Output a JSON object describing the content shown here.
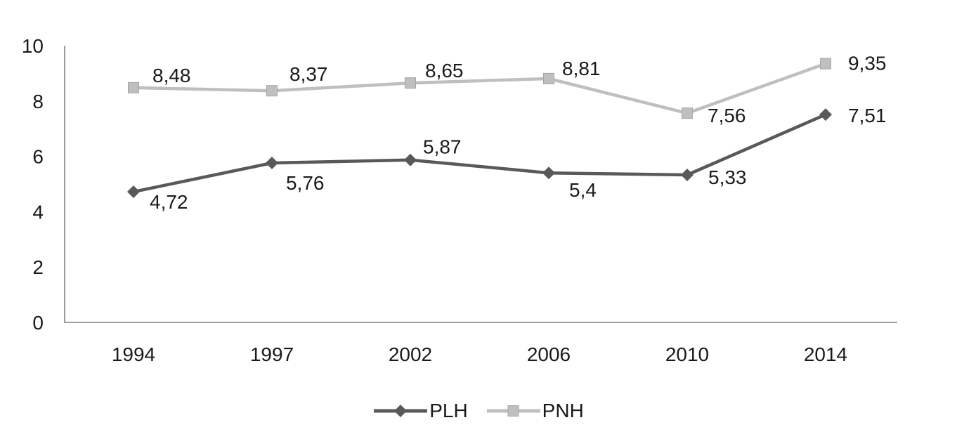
{
  "chart_data": {
    "type": "line",
    "title": "",
    "xlabel": "",
    "ylabel": "",
    "categories": [
      "1994",
      "1997",
      "2002",
      "2006",
      "2010",
      "2014"
    ],
    "series": [
      {
        "name": "PLH",
        "values": [
          4.72,
          5.76,
          5.87,
          5.4,
          5.33,
          7.51
        ],
        "labels": [
          "4,72",
          "5,76",
          "5,87",
          "5,4",
          "5,33",
          "7,51"
        ],
        "color": "#595959",
        "marker": "diamond",
        "label_offsets": [
          [
            23,
            24
          ],
          [
            20,
            38
          ],
          [
            18,
            -9
          ],
          [
            29,
            34
          ],
          [
            30,
            13
          ],
          [
            32,
            11
          ]
        ]
      },
      {
        "name": "PNH",
        "values": [
          8.48,
          8.37,
          8.65,
          8.81,
          7.56,
          9.35
        ],
        "labels": [
          "8,48",
          "8,37",
          "8,65",
          "8,81",
          "7,56",
          "9,35"
        ],
        "color": "#bfbfbf",
        "marker": "square",
        "label_offsets": [
          [
            27,
            -8
          ],
          [
            25,
            -14
          ],
          [
            21,
            -8
          ],
          [
            19,
            -5
          ],
          [
            29,
            13
          ],
          [
            32,
            9
          ]
        ]
      }
    ],
    "ylim": [
      0,
      10
    ],
    "yticks": [
      0,
      2,
      4,
      6,
      8,
      10
    ],
    "grid": false,
    "legend_position": "bottom",
    "legend_entries": [
      "PLH",
      "PNH"
    ],
    "axis_color": "#808080",
    "text_color": "#1a1a1a"
  }
}
